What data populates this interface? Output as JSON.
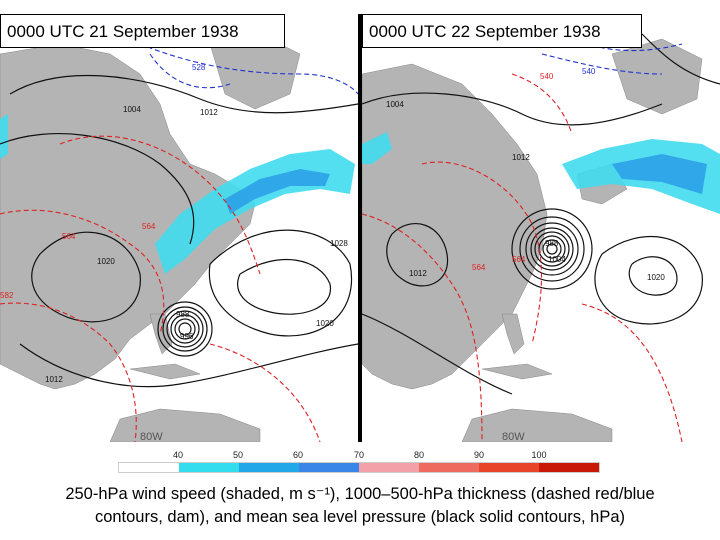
{
  "panels": [
    {
      "id": "left",
      "title": "0000 UTC 21 September 1938",
      "pressure_labels": [
        "1004",
        "1012",
        "1020",
        "1028",
        "1020",
        "1012",
        "988",
        "996"
      ],
      "thickness_labels": [
        "528",
        "564",
        "564",
        "582"
      ],
      "longitude_label": "80W"
    },
    {
      "id": "right",
      "title": "0000 UTC 22 September 1938",
      "pressure_labels": [
        "1004",
        "1012",
        "1012",
        "988",
        "1004",
        "1020"
      ],
      "thickness_labels": [
        "540",
        "540",
        "564",
        "564"
      ],
      "longitude_label": "80W"
    }
  ],
  "colorbar": {
    "tick_labels": [
      "40",
      "50",
      "60",
      "70",
      "80",
      "90",
      "100"
    ],
    "colors": [
      "#ffffff",
      "#33ddee",
      "#22a8e8",
      "#3a86e8",
      "#f4a0a8",
      "#ee6a5e",
      "#e8442a",
      "#c81808"
    ]
  },
  "caption": {
    "line1": "250-hPa wind speed (shaded, m s⁻¹), 1000–500-hPa thickness (dashed red/blue",
    "line2": "contours, dam), and mean sea level pressure (black solid contours, hPa)"
  },
  "colors": {
    "land": "#b4b4b4",
    "ocean": "#ffffff",
    "pressure_contour": "#111111",
    "thickness_warm": "#dd2222",
    "thickness_cold": "#2233cc",
    "jet_light": "#40dcee",
    "jet_dark": "#2a9ee6"
  }
}
